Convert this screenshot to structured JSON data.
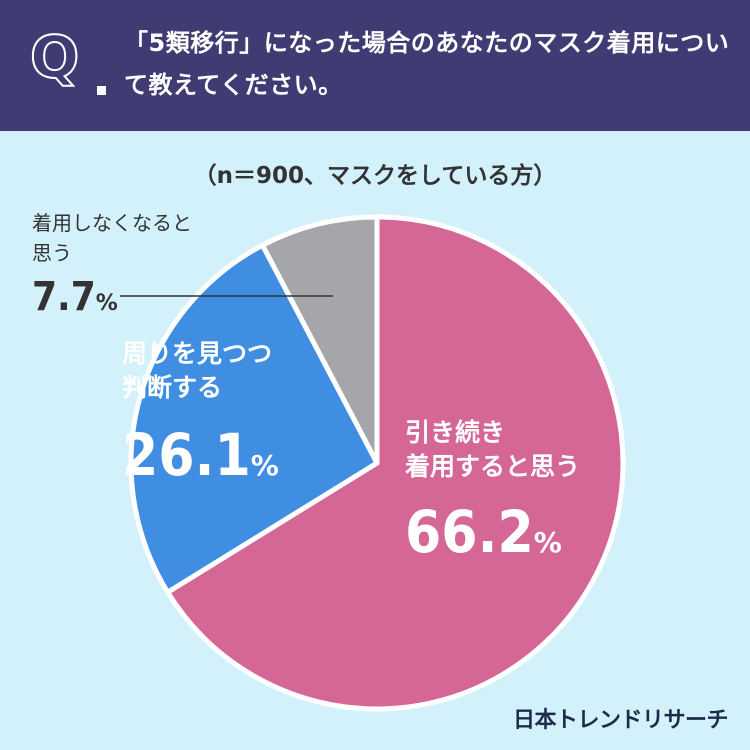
{
  "header": {
    "q_mark": "Q",
    "question": "「5類移行」になった場合のあなたのマスク着用について教えてください。"
  },
  "subtitle": "（n＝900、マスクをしている方）",
  "chart_data": {
    "type": "pie",
    "start": "12 o'clock",
    "direction": "clockwise",
    "slices": [
      {
        "label_lines": [
          "引き続き",
          "着用すると思う"
        ],
        "value": 66.2,
        "color": "#d56797"
      },
      {
        "label_lines": [
          "周りを見つつ",
          "判断する"
        ],
        "value": 26.1,
        "color": "#3f8ee2"
      },
      {
        "label_lines": [
          "着用しなくなると",
          "思う"
        ],
        "value": 7.7,
        "color": "#a5a6aa"
      }
    ],
    "unit": "%"
  },
  "brand": "日本トレンドリサーチ"
}
